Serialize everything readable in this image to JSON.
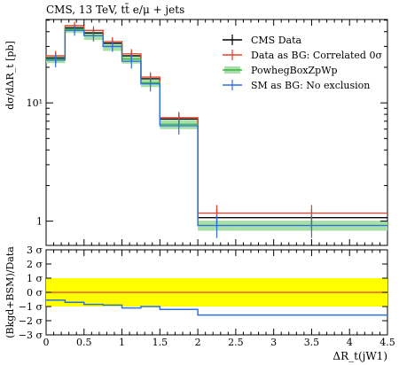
{
  "chart_data": {
    "type": "line",
    "title": "CMS, 13 TeV, tt̄ e/μ + jets",
    "ylabel": "dσ/dΔR_t [pb]",
    "xlabel": "ΔR_t(jW1)",
    "ratio_ylabel": "(Bkgd+BSM)/Data",
    "x_range": [
      0,
      4.5
    ],
    "y_scale": "log",
    "y_tick_labels": [
      "1",
      "10¹"
    ],
    "y_ticks": [
      1,
      10
    ],
    "x_ticks": [
      0,
      0.5,
      1,
      1.5,
      2,
      2.5,
      3,
      3.5,
      4,
      4.5
    ],
    "x_tick_labels": [
      "0",
      "0.5",
      "1",
      "1.5",
      "2",
      "2.5",
      "3",
      "3.5",
      "4",
      "4.5"
    ],
    "bin_edges": [
      0,
      0.25,
      0.5,
      0.75,
      1.0,
      1.25,
      1.5,
      2.0,
      2.5,
      4.5
    ],
    "legend_position": "top-right",
    "series": [
      {
        "name": "CMS Data",
        "color": "#000000",
        "values": [
          24,
          43,
          39,
          32,
          25,
          16,
          7.3,
          1.07,
          1.07
        ],
        "errors": [
          2.5,
          3.5,
          3.5,
          3,
          2.5,
          1.7,
          0.9,
          0.2,
          0.2
        ]
      },
      {
        "name": "Data as BG: Correlated 0σ",
        "color": "#e8402c",
        "values": [
          25,
          45,
          41,
          33,
          26,
          16.5,
          7.5,
          1.17,
          1.17
        ],
        "errors": [
          2.5,
          3.5,
          3.5,
          3,
          2.5,
          1.7,
          0.9,
          0.2,
          0.2
        ]
      },
      {
        "name": "PowhegBoxZpWp",
        "color": "#3db648",
        "values": [
          23.5,
          42,
          37,
          30,
          23.5,
          14.8,
          6.6,
          0.92,
          0.92
        ],
        "errors": [
          1.8,
          3,
          3,
          2.5,
          2,
          1.2,
          0.6,
          0.09,
          0.09
        ]
      },
      {
        "name": "SM as BG: No exclusion",
        "color": "#2f6fe0",
        "values": [
          23,
          41,
          37,
          30,
          22.5,
          14.5,
          6.4,
          0.92,
          0.92
        ],
        "errors": [
          3,
          4,
          4,
          3,
          3,
          2,
          1,
          0.2,
          0.2
        ]
      }
    ],
    "ratio_panel": {
      "y_range": [
        -3,
        3
      ],
      "y_ticks": [
        -3,
        -2,
        -1,
        0,
        1,
        2,
        3
      ],
      "y_tick_labels": [
        "−3 σ",
        "−2 σ",
        "−1 σ",
        "0 σ",
        "1 σ",
        "2 σ",
        "3 σ"
      ],
      "band": [
        -1,
        1
      ],
      "band_color": "#ffff00",
      "reference_line": {
        "value": 0,
        "color": "#e8402c"
      },
      "sm_values": [
        -0.55,
        -0.7,
        -0.85,
        -0.9,
        -1.1,
        -1.0,
        -1.2,
        -1.6,
        -1.6
      ]
    }
  }
}
